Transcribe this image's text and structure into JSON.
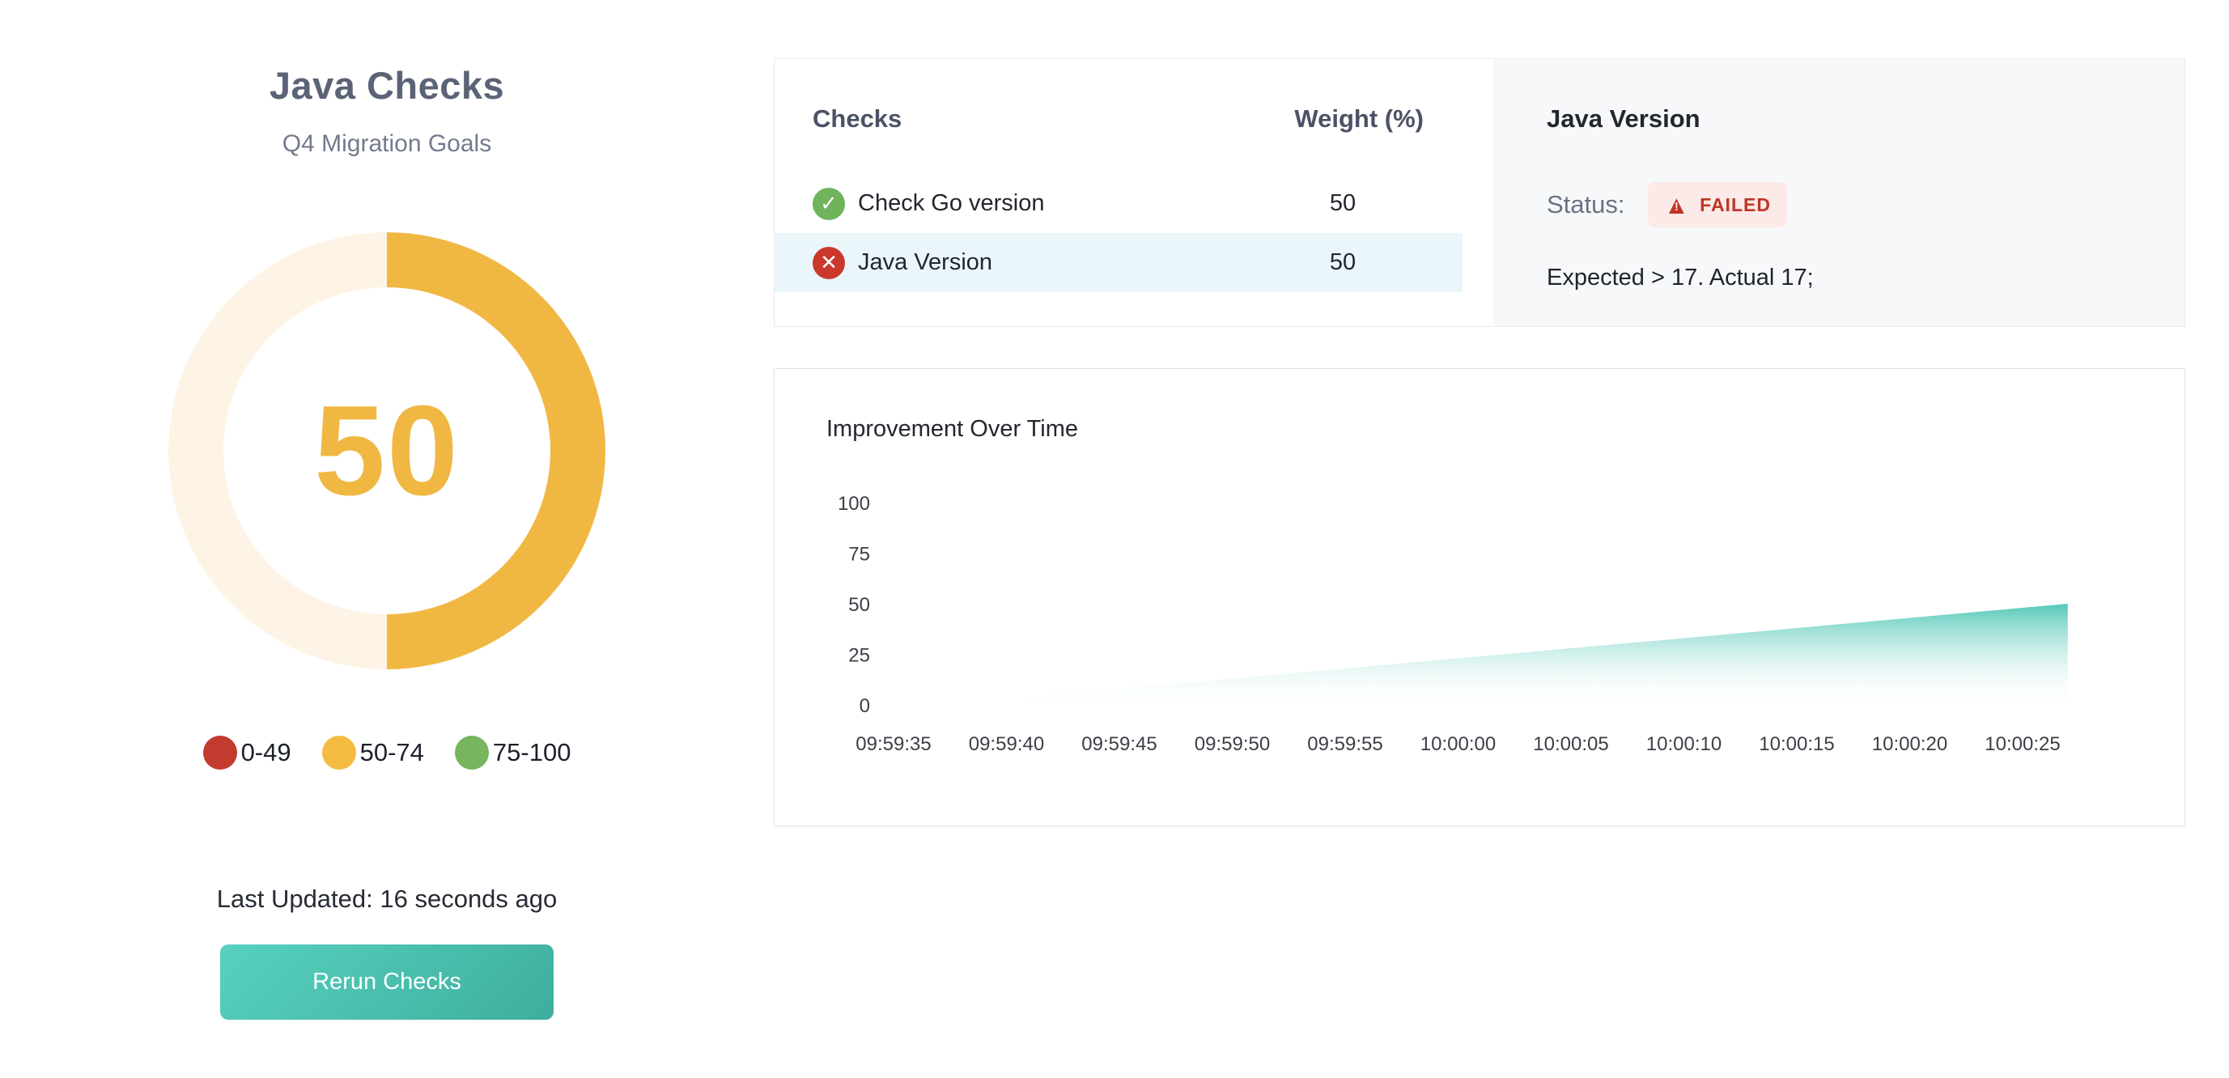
{
  "left_panel": {
    "title": "Java Checks",
    "subtitle": "Q4 Migration Goals",
    "gauge": {
      "value": "50",
      "percent": 50,
      "fill_color": "#f0b843",
      "track_color": "#fdf4e6"
    },
    "legend": [
      {
        "label": "0-49",
        "color": "#c33a2e"
      },
      {
        "label": "50-74",
        "color": "#f5bb41"
      },
      {
        "label": "75-100",
        "color": "#77b55e"
      }
    ],
    "last_updated": "Last Updated: 16 seconds ago",
    "rerun_button_label": "Rerun Checks"
  },
  "checks_panel": {
    "header": {
      "checks": "Checks",
      "weight": "Weight (%)"
    },
    "rows": [
      {
        "name": "Check Go version",
        "weight": "50",
        "status": "passed",
        "highlighted": false
      },
      {
        "name": "Java Version",
        "weight": "50",
        "status": "failed",
        "highlighted": true
      }
    ]
  },
  "detail_panel": {
    "title": "Java Version",
    "status_label": "Status:",
    "status_badge": "FAILED",
    "message": "Expected > 17. Actual 17;"
  },
  "chart_data": {
    "type": "area",
    "title": "Improvement Over Time",
    "xlabel": "",
    "ylabel": "",
    "ylim": [
      0,
      100
    ],
    "grid": false,
    "legend_position": "none",
    "y_ticks": [
      0,
      25,
      50,
      75,
      100
    ],
    "x_ticks": [
      "09:59:35",
      "09:59:40",
      "09:59:45",
      "09:59:50",
      "09:59:55",
      "10:00:00",
      "10:00:05",
      "10:00:10",
      "10:00:15",
      "10:00:20",
      "10:00:25"
    ],
    "series": [
      {
        "name": "Improvement",
        "points": [
          {
            "x": "09:59:37",
            "y": 0
          },
          {
            "x": "09:59:42",
            "y": 5
          },
          {
            "x": "09:59:47",
            "y": 10
          },
          {
            "x": "09:59:52",
            "y": 15
          },
          {
            "x": "09:59:57",
            "y": 20
          },
          {
            "x": "10:00:02",
            "y": 25
          },
          {
            "x": "10:00:07",
            "y": 30
          },
          {
            "x": "10:00:12",
            "y": 35
          },
          {
            "x": "10:00:17",
            "y": 40
          },
          {
            "x": "10:00:22",
            "y": 45
          },
          {
            "x": "10:00:27",
            "y": 50
          }
        ]
      }
    ],
    "area_color_top": "#4cc5b4",
    "area_color_bottom": "#ffffff"
  },
  "icons": {
    "passed": "✓",
    "failed": "✕",
    "warning_triangle": "▲",
    "exclamation": "!"
  },
  "colors": {
    "accent_yellow": "#f0b843",
    "row_highlight": "#eaf6fa",
    "detail_panel_bg": "#f7f8fa",
    "badge_bg": "#fbeae7",
    "badge_red": "#c03527",
    "check_green": "#6fb35b",
    "cross_red": "#ca382c",
    "button_teal_from": "#57d1c0",
    "button_teal_to": "#3fae9c",
    "chart_teal": "#4cc5b4",
    "title_slate": "#5b6377"
  }
}
